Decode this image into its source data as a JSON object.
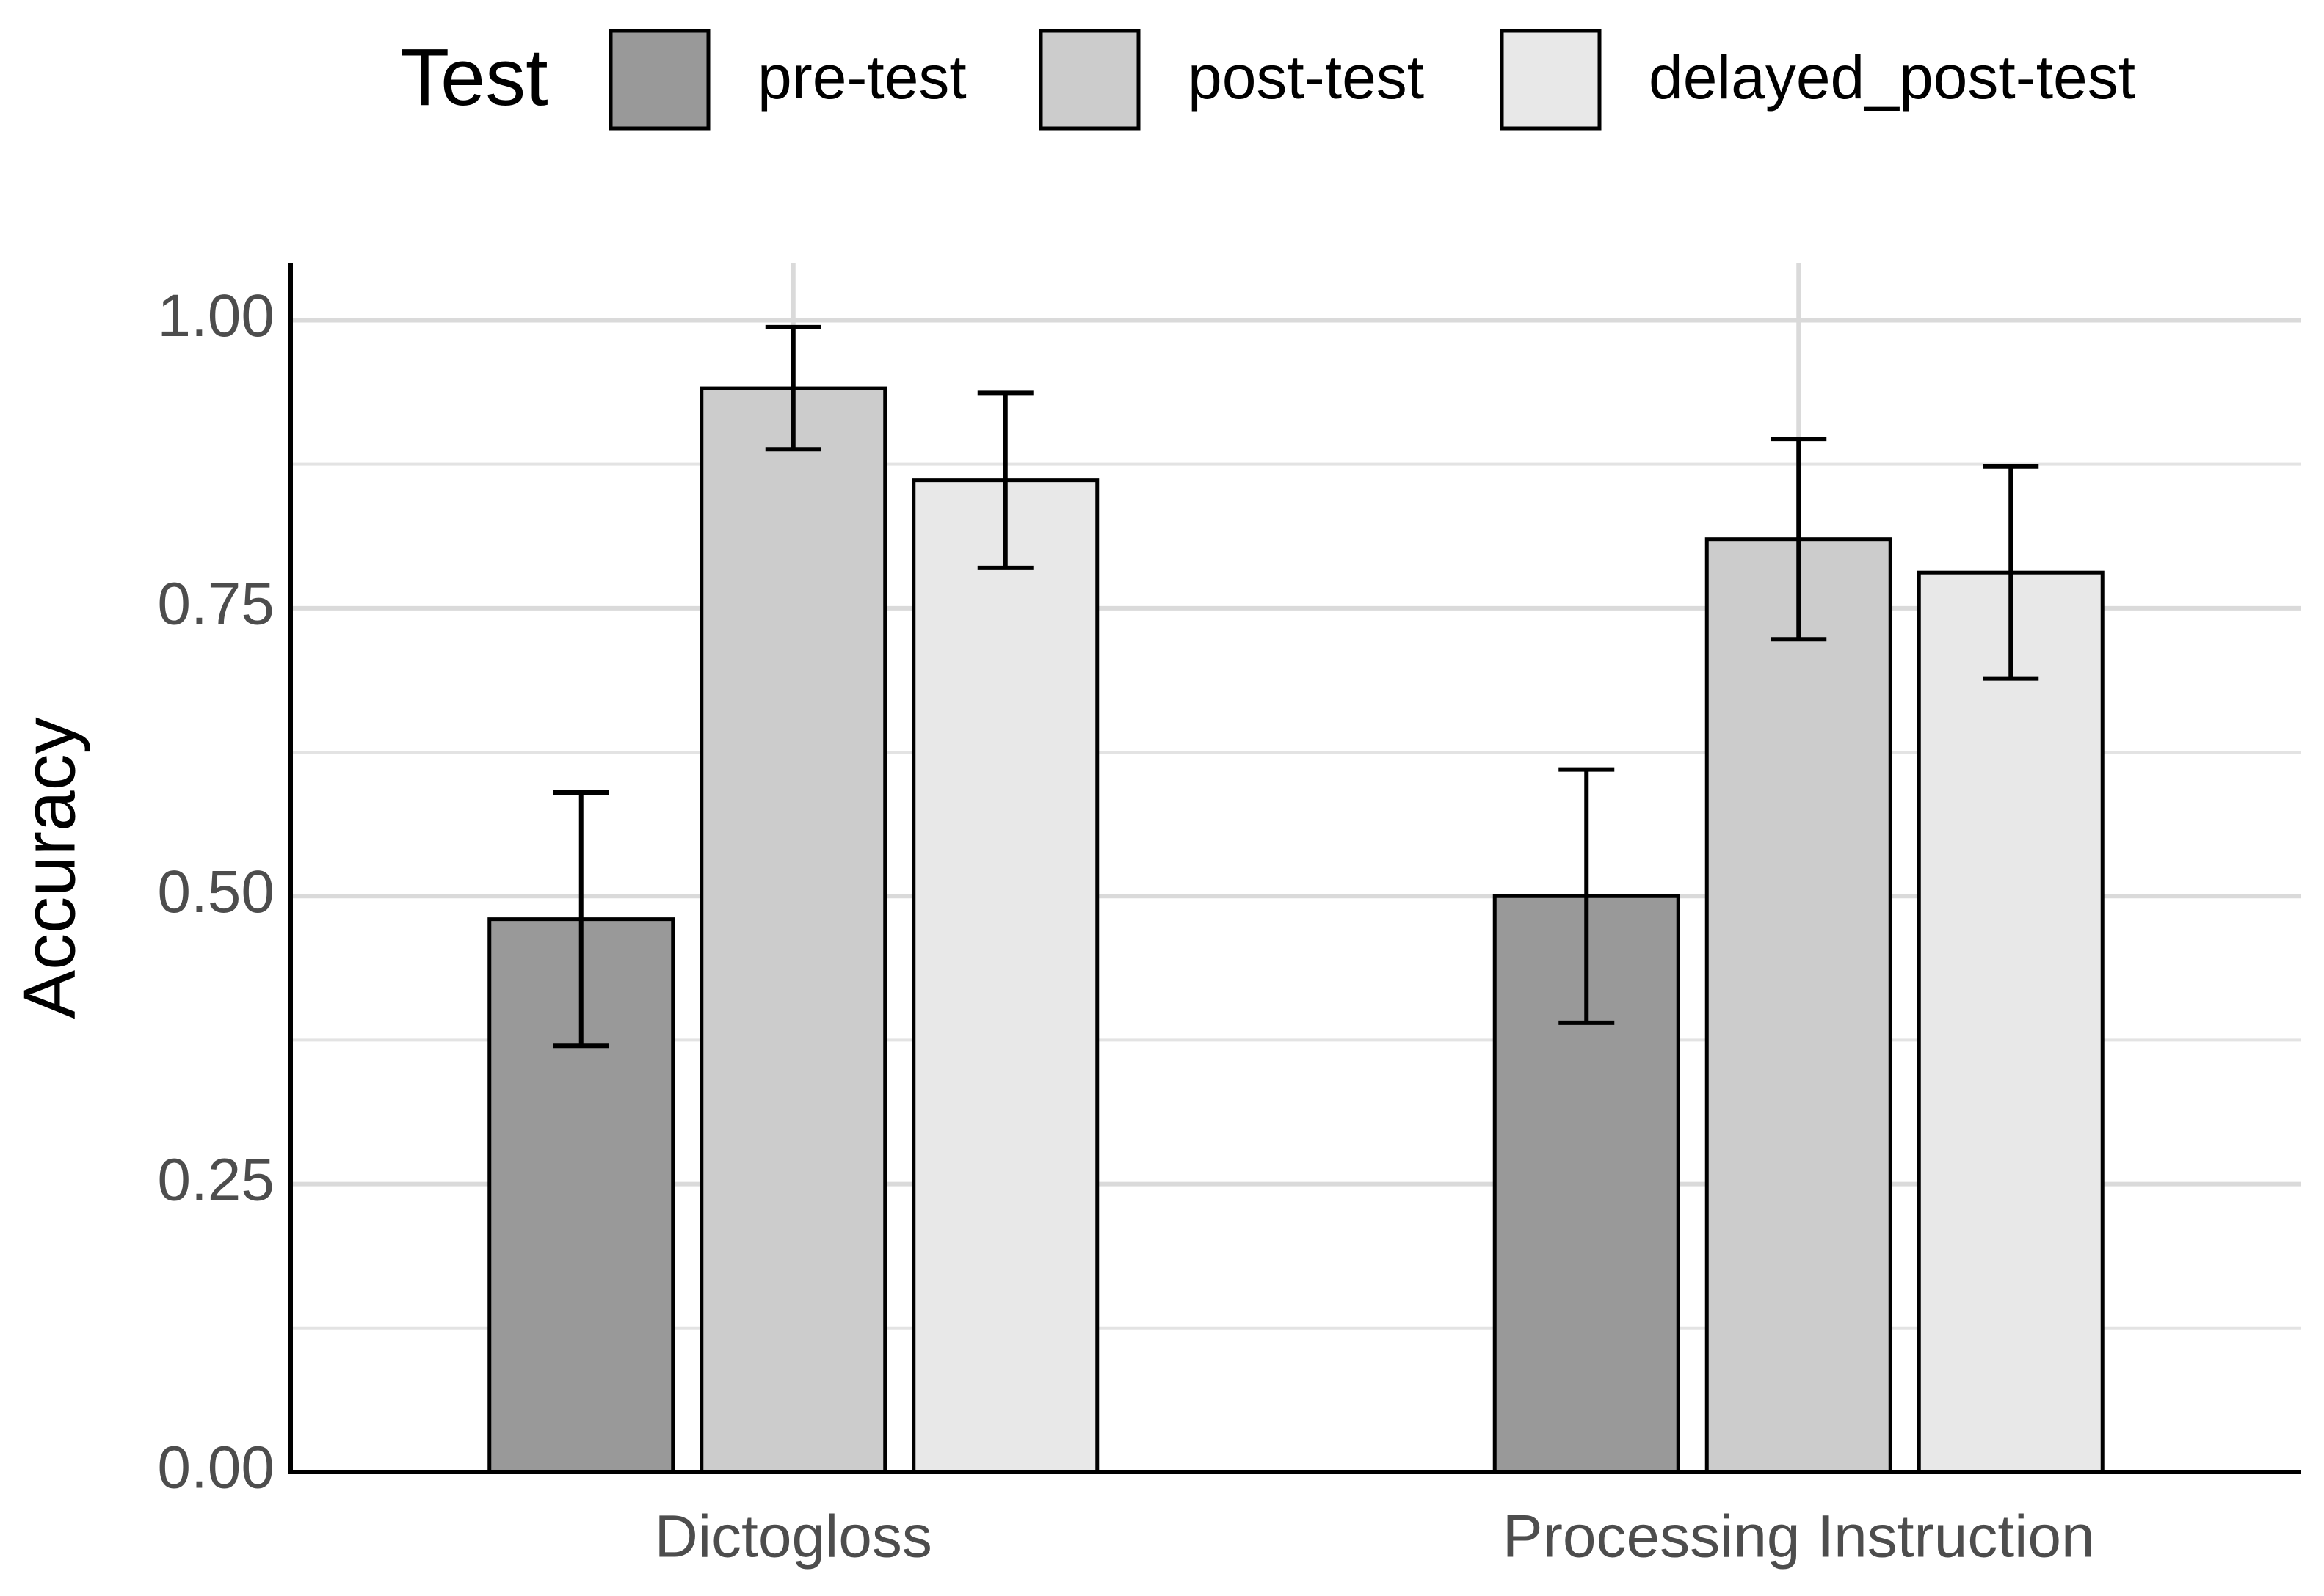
{
  "chart_data": {
    "type": "bar",
    "categories": [
      "Dictogloss",
      "Processing Instruction"
    ],
    "y_label": "Accuracy",
    "legend_title": "Test",
    "legend_position": "top",
    "series": [
      {
        "name": "pre-test",
        "color": "#999999",
        "values": [
          0.48,
          0.5
        ],
        "errors": [
          0.11,
          0.11
        ]
      },
      {
        "name": "post-test",
        "color": "#cccccc",
        "values": [
          0.941,
          0.81
        ],
        "errors": [
          0.053,
          0.087
        ]
      },
      {
        "name": "delayed_post-test",
        "color": "#e8e8e8",
        "values": [
          0.861,
          0.781
        ],
        "errors": [
          0.076,
          0.092
        ]
      }
    ],
    "ylim": [
      0,
      1.05
    ],
    "yticks": [
      {
        "value": 0,
        "label": "0.00"
      },
      {
        "value": 0.25,
        "label": "0.25"
      },
      {
        "value": 0.5,
        "label": "0.50"
      },
      {
        "value": 0.75,
        "label": "0.75"
      },
      {
        "value": 1,
        "label": "1.00"
      }
    ],
    "grid": true
  }
}
